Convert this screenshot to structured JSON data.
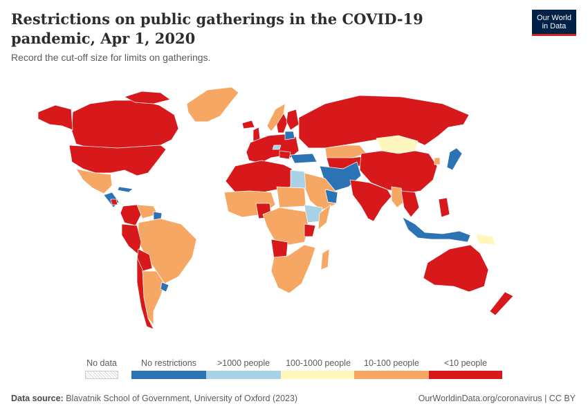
{
  "title": "Restrictions on public gatherings in the COVID-19 pandemic, Apr 1, 2020",
  "subtitle": "Record the cut-off size for limits on gatherings.",
  "logo": {
    "line1": "Our World",
    "line2": "in Data"
  },
  "legend": {
    "no_data": "No data",
    "categories": [
      {
        "label": "No restrictions",
        "color": "#2c73b3"
      },
      {
        "label": ">1000 people",
        "color": "#a9d2e6"
      },
      {
        "label": "100-1000 people",
        "color": "#fff7bd"
      },
      {
        "label": "10-100 people",
        "color": "#f6a764"
      },
      {
        "label": "<10 people",
        "color": "#d7191c"
      }
    ]
  },
  "footer": {
    "source_label": "Data source:",
    "source_text": "Blavatnik School of Government, University of Oxford (2023)",
    "link": "OurWorldinData.org/coronavirus | CC BY"
  },
  "colors": {
    "background": "#ffffff",
    "border": "#ffffff"
  }
}
